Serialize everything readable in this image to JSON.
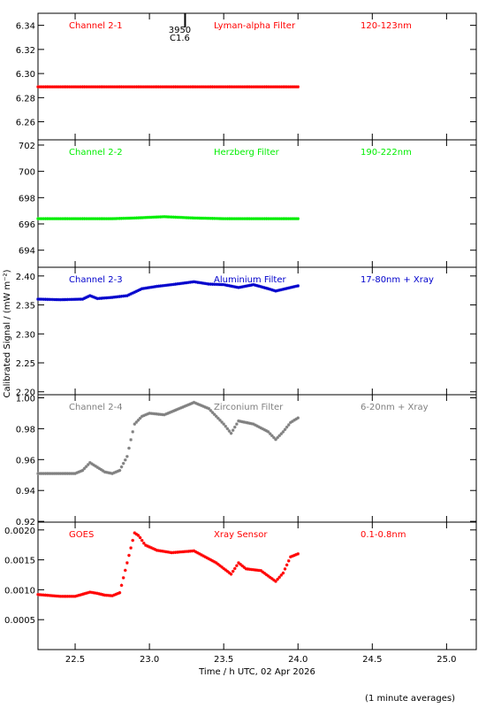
{
  "chart_data": {
    "type": "scatter",
    "x_axis": {
      "label": "Time / h UTC, 02 Apr 2026",
      "range": [
        22.25,
        25.2
      ],
      "ticks": [
        "22.5",
        "23.0",
        "23.5",
        "24.0",
        "24.5",
        "25.0"
      ]
    },
    "y_axis_label": "Calibrated Signal / (mW m⁻²)",
    "footnote": "(1 minute averages)",
    "event_marker": {
      "x": 23.24,
      "labels": [
        "3950",
        "C1.6"
      ]
    },
    "panels": [
      {
        "channel": "Channel 2-1",
        "filter": "Lyman-alpha Filter",
        "band": "120-123nm",
        "color": "#ff0000",
        "ylim": [
          6.245,
          6.35
        ],
        "yticks": [
          "6.26",
          "6.28",
          "6.30",
          "6.32",
          "6.34"
        ],
        "series": {
          "x": [
            22.25,
            22.5,
            22.75,
            23.0,
            23.25,
            23.5,
            23.75,
            24.0
          ],
          "y": [
            6.289,
            6.289,
            6.289,
            6.289,
            6.289,
            6.289,
            6.289,
            6.289
          ]
        }
      },
      {
        "channel": "Channel 2-2",
        "filter": "Herzberg Filter",
        "band": "190-222nm",
        "color": "#00ee00",
        "ylim": [
          692.7,
          702.4
        ],
        "yticks": [
          "694",
          "696",
          "698",
          "700",
          "702"
        ],
        "series": {
          "x": [
            22.25,
            22.5,
            22.75,
            22.9,
            23.0,
            23.1,
            23.2,
            23.3,
            23.5,
            23.75,
            24.0
          ],
          "y": [
            696.4,
            696.4,
            696.4,
            696.45,
            696.5,
            696.55,
            696.5,
            696.45,
            696.4,
            696.4,
            696.4
          ]
        }
      },
      {
        "channel": "Channel 2-3",
        "filter": "Aluminium Filter",
        "band": "17-80nm + Xray",
        "color": "#0000cc",
        "ylim": [
          2.195,
          2.415
        ],
        "yticks": [
          "2.20",
          "2.25",
          "2.30",
          "2.35",
          "2.40"
        ],
        "series": {
          "x": [
            22.25,
            22.4,
            22.55,
            22.6,
            22.65,
            22.75,
            22.85,
            22.95,
            23.05,
            23.15,
            23.3,
            23.4,
            23.5,
            23.6,
            23.7,
            23.8,
            23.85,
            23.9,
            24.0
          ],
          "y": [
            2.36,
            2.359,
            2.36,
            2.366,
            2.361,
            2.363,
            2.366,
            2.378,
            2.382,
            2.385,
            2.39,
            2.386,
            2.385,
            2.38,
            2.385,
            2.378,
            2.374,
            2.377,
            2.383
          ]
        }
      },
      {
        "channel": "Channel 2-4",
        "filter": "Zirconium Filter",
        "band": "6-20nm + Xray",
        "color": "#808080",
        "ylim": [
          0.9195,
          1.002
        ],
        "yticks": [
          "0.92",
          "0.94",
          "0.96",
          "0.98",
          "1.00"
        ],
        "series": {
          "x": [
            22.25,
            22.4,
            22.5,
            22.55,
            22.6,
            22.65,
            22.7,
            22.75,
            22.8,
            22.85,
            22.88,
            22.9,
            22.95,
            23.0,
            23.1,
            23.2,
            23.3,
            23.4,
            23.5,
            23.55,
            23.6,
            23.7,
            23.8,
            23.85,
            23.9,
            23.95,
            24.0
          ],
          "y": [
            0.951,
            0.951,
            0.951,
            0.953,
            0.958,
            0.955,
            0.952,
            0.951,
            0.953,
            0.962,
            0.975,
            0.983,
            0.988,
            0.99,
            0.989,
            0.993,
            0.997,
            0.993,
            0.983,
            0.977,
            0.985,
            0.983,
            0.978,
            0.973,
            0.978,
            0.984,
            0.987
          ]
        }
      },
      {
        "channel": "GOES",
        "filter": "Xray Sensor",
        "band": "0.1-0.8nm",
        "color": "#ff0000",
        "ylim": [
          0.0,
          0.00213
        ],
        "yticks": [
          "0.0005",
          "0.0010",
          "0.0015",
          "0.0020"
        ],
        "series": {
          "x": [
            22.25,
            22.4,
            22.5,
            22.6,
            22.65,
            22.7,
            22.75,
            22.8,
            22.85,
            22.9,
            22.93,
            22.97,
            23.05,
            23.15,
            23.3,
            23.45,
            23.55,
            23.6,
            23.65,
            23.75,
            23.85,
            23.9,
            23.95,
            24.0
          ],
          "y": [
            0.00092,
            0.00089,
            0.00089,
            0.00096,
            0.00094,
            0.00091,
            0.0009,
            0.00095,
            0.00145,
            0.00195,
            0.0019,
            0.00175,
            0.00166,
            0.00162,
            0.00165,
            0.00145,
            0.00126,
            0.00145,
            0.00135,
            0.00132,
            0.00114,
            0.00128,
            0.00155,
            0.0016
          ]
        }
      }
    ]
  }
}
